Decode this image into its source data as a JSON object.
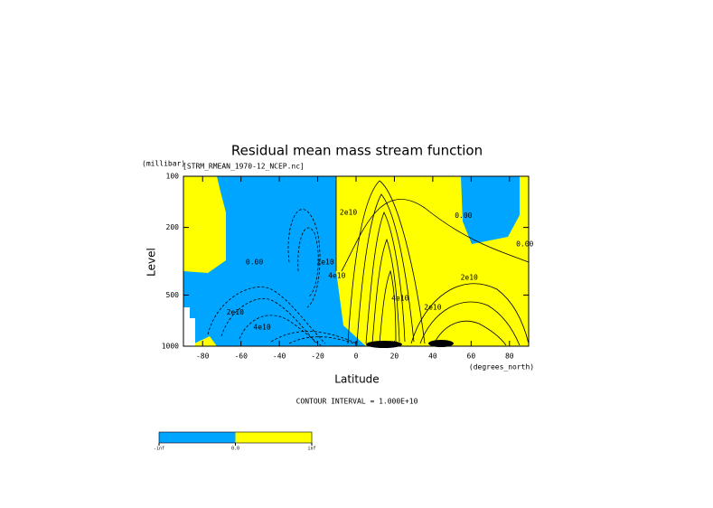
{
  "chart_data": {
    "type": "contour",
    "title": "Residual mean mass stream function",
    "subtitle": "[STRM_RMEAN_1970-12_NCEP.nc]",
    "xlabel": "Latitude",
    "xunit": "(degrees_north)",
    "ylabel": "Level",
    "yunit": "(millibar)",
    "xlim": [
      -90,
      90
    ],
    "xticks": [
      -80,
      -60,
      -40,
      -20,
      0,
      20,
      40,
      60,
      80
    ],
    "ylim": [
      1000,
      100
    ],
    "yticks": [
      100,
      200,
      500,
      1000
    ],
    "yscale": "log",
    "annotations": [
      {
        "text": "2e10",
        "x": -4,
        "y": 163
      },
      {
        "text": "0.00",
        "x": -53,
        "y": 320
      },
      {
        "text": "2e10",
        "x": -16,
        "y": 320
      },
      {
        "text": "4e10",
        "x": -10,
        "y": 385
      },
      {
        "text": "2e10",
        "x": -63,
        "y": 630
      },
      {
        "text": "4e10",
        "x": -49,
        "y": 773
      },
      {
        "text": "0.00",
        "x": 56,
        "y": 170
      },
      {
        "text": "2e10",
        "x": 59,
        "y": 395
      },
      {
        "text": "4e10",
        "x": 23,
        "y": 523
      },
      {
        "text": "2e10",
        "x": 40,
        "y": 590
      },
      {
        "text": "0.00",
        "x": 88,
        "y": 250
      }
    ],
    "footer": "CONTOUR INTERVAL = 1.000E+10",
    "colorbar": {
      "colors": [
        "#00a5ff",
        "#ffff00"
      ],
      "labels": [
        "-inf",
        "0.0",
        "inf"
      ]
    }
  }
}
